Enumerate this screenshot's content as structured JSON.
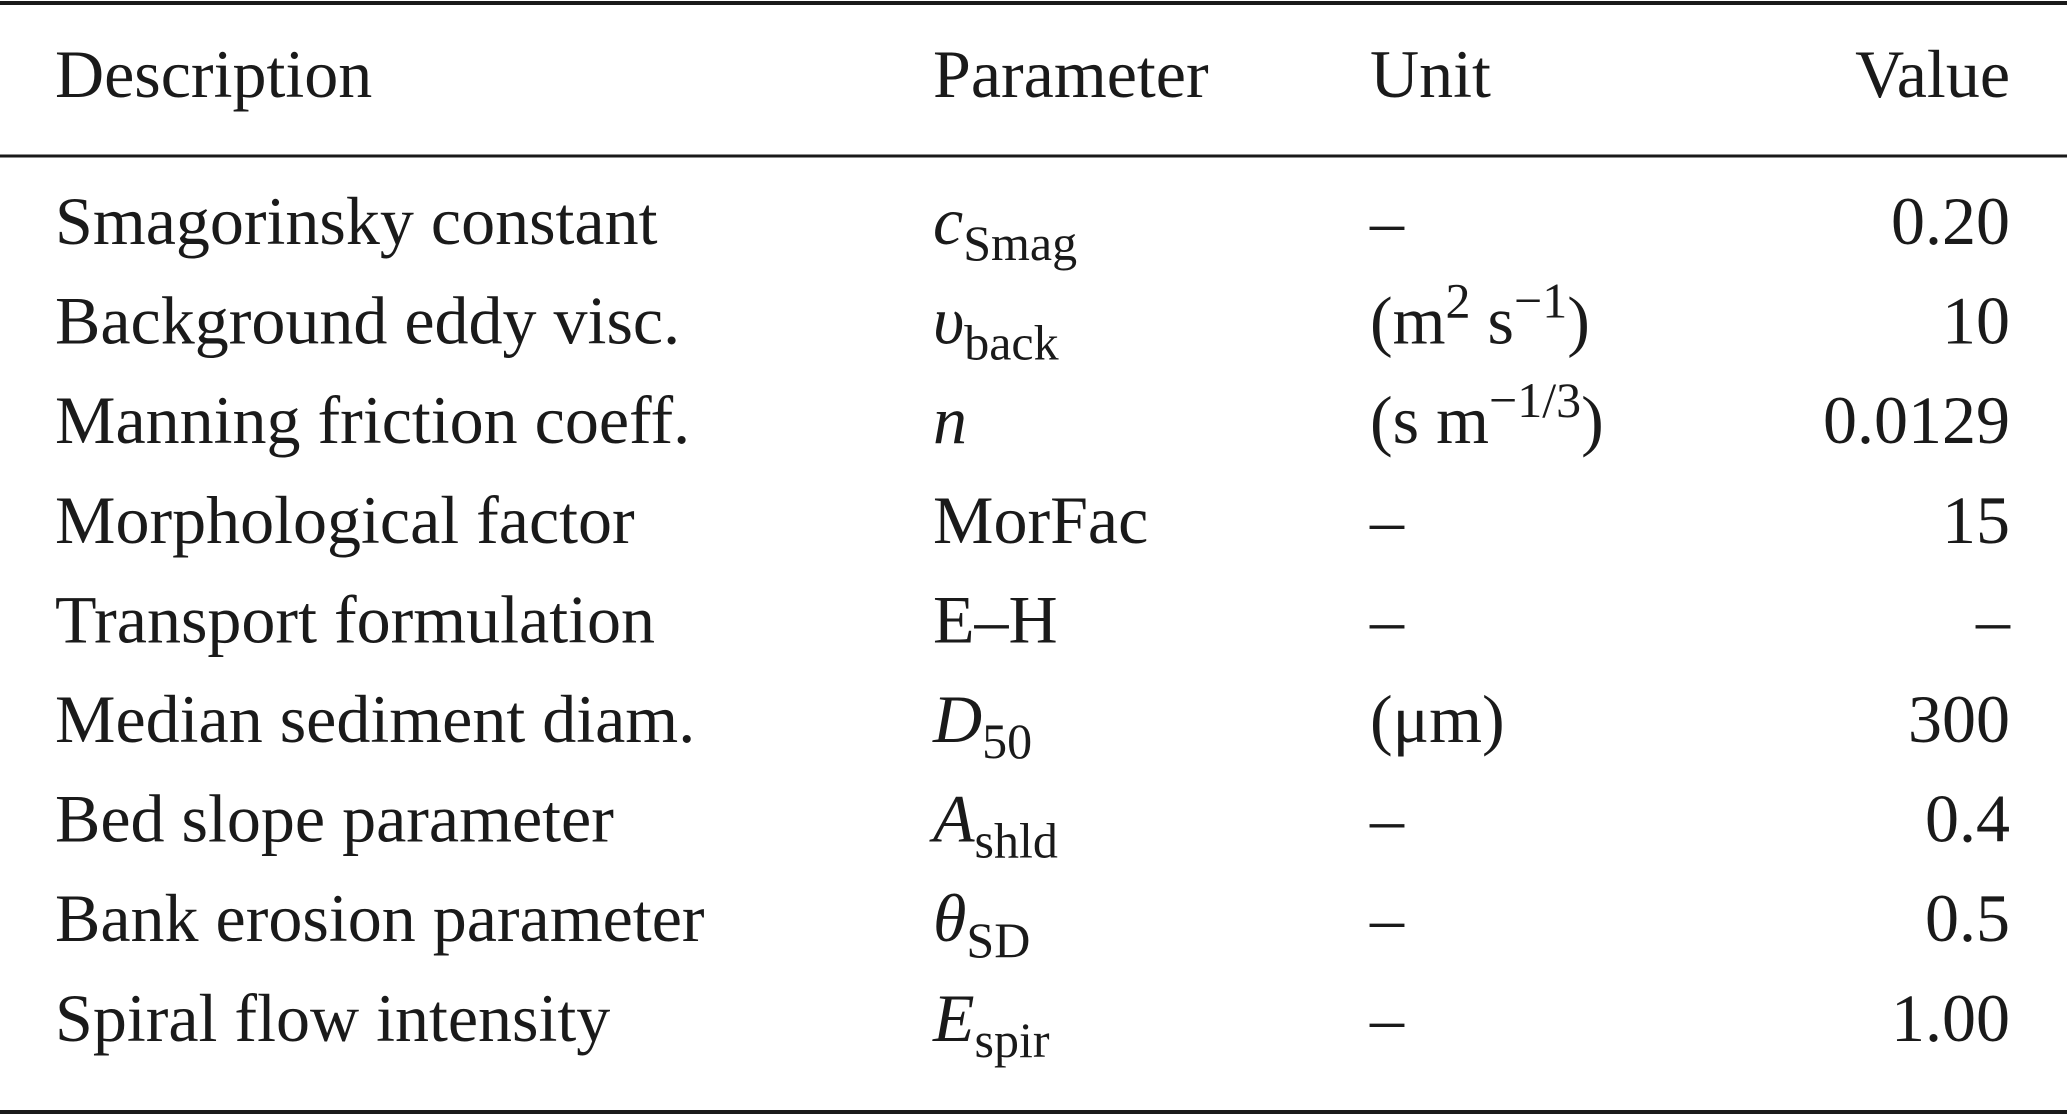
{
  "table": {
    "header": [
      "Description",
      "Parameter",
      "Unit",
      "Value"
    ],
    "rows": [
      {
        "description": "Smagorinsky constant",
        "parameter": {
          "main": "c",
          "sub": "Smag",
          "italic": true
        },
        "unit": [
          "–"
        ],
        "value": "0.20"
      },
      {
        "description": "Background eddy visc.",
        "parameter": {
          "main": "υ",
          "sub": "back",
          "italic": true
        },
        "unit": [
          "(m",
          {
            "sup": "2"
          },
          " s",
          {
            "sup": "−1"
          },
          ")"
        ],
        "value": "10"
      },
      {
        "description": "Manning friction coeff.",
        "parameter": {
          "main": "n",
          "italic": true
        },
        "unit": [
          "(s m",
          {
            "sup": "−1/3"
          },
          ")"
        ],
        "value": "0.0129"
      },
      {
        "description": "Morphological factor",
        "parameter": {
          "main": "MorFac",
          "italic": false
        },
        "unit": [
          "–"
        ],
        "value": "15"
      },
      {
        "description": "Transport formulation",
        "parameter": {
          "main": "E–H",
          "italic": false
        },
        "unit": [
          "–"
        ],
        "value": "–"
      },
      {
        "description": "Median sediment diam.",
        "parameter": {
          "main": "D",
          "sub": "50",
          "italic": true
        },
        "unit": [
          "(μm)"
        ],
        "value": "300"
      },
      {
        "description": "Bed slope parameter",
        "parameter": {
          "main": "A",
          "sub": "shld",
          "italic": true
        },
        "unit": [
          "–"
        ],
        "value": "0.4"
      },
      {
        "description": "Bank erosion parameter",
        "parameter": {
          "main": "θ",
          "sub": "SD",
          "italic": true
        },
        "unit": [
          "–"
        ],
        "value": "0.5"
      },
      {
        "description": "Spiral flow intensity",
        "parameter": {
          "main": "E",
          "sub": "spir",
          "italic": true
        },
        "unit": [
          "–"
        ],
        "value": "1.00"
      }
    ]
  }
}
